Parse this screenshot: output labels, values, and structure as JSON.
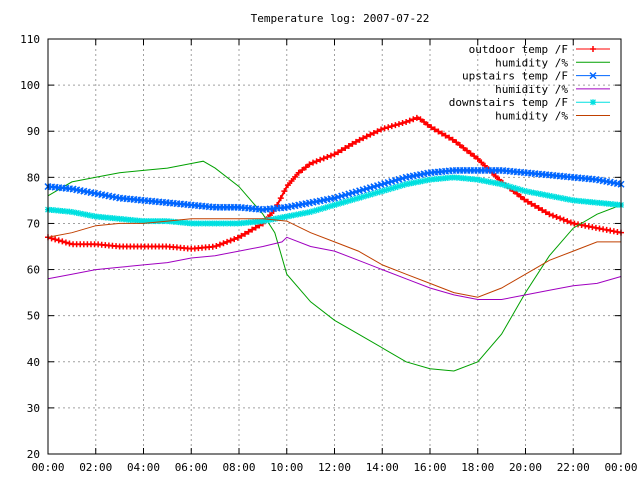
{
  "chart_data": {
    "type": "line",
    "title": "Temperature log: 2007-07-22",
    "xlabel": "",
    "ylabel": "",
    "ylim": [
      20,
      110
    ],
    "yticks": [
      20,
      30,
      40,
      50,
      60,
      70,
      80,
      90,
      100,
      110
    ],
    "xlim": [
      0,
      24
    ],
    "xtick_labels": [
      "00:00",
      "02:00",
      "04:00",
      "06:00",
      "08:00",
      "10:00",
      "12:00",
      "14:00",
      "16:00",
      "18:00",
      "20:00",
      "22:00",
      "00:00"
    ],
    "grid": true,
    "legend_position": "top-right",
    "series": [
      {
        "name": "outdoor temp /F",
        "color": "#ff0000",
        "marker": "plus",
        "x": [
          0,
          1,
          2,
          3,
          4,
          5,
          6,
          7,
          8,
          9,
          9.5,
          10,
          10.5,
          11,
          12,
          13,
          14,
          15,
          15.5,
          16,
          17,
          18,
          19,
          20,
          21,
          22,
          23,
          24
        ],
        "y": [
          67,
          65.5,
          65.5,
          65,
          65,
          65,
          64.5,
          65,
          67,
          70,
          73,
          78,
          81,
          83,
          85,
          88,
          90.5,
          92,
          93,
          91,
          88,
          84,
          79,
          75,
          72,
          70,
          69,
          68
        ]
      },
      {
        "name": "humidity /%",
        "color": "#00a000",
        "marker": "none",
        "x": [
          0,
          1,
          2,
          3,
          4,
          5,
          6,
          6.5,
          7,
          8,
          9,
          9.5,
          10,
          11,
          12,
          13,
          14,
          15,
          16,
          17,
          18,
          19,
          20,
          21,
          22,
          23,
          24
        ],
        "y": [
          76,
          79,
          80,
          81,
          81.5,
          82,
          83,
          83.5,
          82,
          78,
          72,
          68,
          59,
          53,
          49,
          46,
          43,
          40,
          38.5,
          38,
          40,
          46,
          55,
          63,
          69,
          72,
          74
        ]
      },
      {
        "name": "upstairs temp /F",
        "color": "#0066ff",
        "marker": "x",
        "x": [
          0,
          1,
          2,
          3,
          4,
          5,
          6,
          7,
          8,
          9,
          10,
          11,
          12,
          13,
          14,
          15,
          16,
          17,
          18,
          19,
          20,
          21,
          22,
          23,
          24
        ],
        "y": [
          78,
          77.5,
          76.5,
          75.5,
          75,
          74.5,
          74,
          73.5,
          73.5,
          73,
          73.5,
          74.5,
          75.5,
          77,
          78.5,
          80,
          81,
          81.5,
          81.5,
          81.5,
          81,
          80.5,
          80,
          79.5,
          78.5
        ]
      },
      {
        "name": "humidity /%",
        "color": "#a000c0",
        "marker": "none",
        "x": [
          0,
          1,
          2,
          3,
          4,
          5,
          6,
          7,
          8,
          9,
          9.8,
          10,
          11,
          12,
          13,
          14,
          15,
          16,
          17,
          18,
          19,
          20,
          21,
          22,
          23,
          24
        ],
        "y": [
          58,
          59,
          60,
          60.5,
          61,
          61.5,
          62.5,
          63,
          64,
          65,
          66,
          67,
          65,
          64,
          62,
          60,
          58,
          56,
          54.5,
          53.5,
          53.5,
          54.5,
          55.5,
          56.5,
          57,
          58.5
        ]
      },
      {
        "name": "downstairs temp /F",
        "color": "#00e0e0",
        "marker": "star",
        "x": [
          0,
          1,
          2,
          3,
          4,
          5,
          6,
          7,
          8,
          9,
          10,
          11,
          12,
          13,
          14,
          15,
          16,
          17,
          18,
          19,
          20,
          21,
          22,
          23,
          24
        ],
        "y": [
          73,
          72.5,
          71.5,
          71,
          70.5,
          70.5,
          70,
          70,
          70,
          70.5,
          71.5,
          72.5,
          74,
          75.5,
          77,
          78.5,
          79.5,
          80,
          79.5,
          78.5,
          77,
          76,
          75,
          74.5,
          74
        ]
      },
      {
        "name": "humidity /%",
        "color": "#c04000",
        "marker": "none",
        "x": [
          0,
          1,
          2,
          3,
          4,
          5,
          6,
          7,
          8,
          9,
          10,
          11,
          12,
          13,
          14,
          15,
          16,
          17,
          18,
          19,
          20,
          21,
          22,
          23,
          24
        ],
        "y": [
          67,
          68,
          69.5,
          70,
          70,
          70.5,
          71,
          71,
          71,
          71,
          70.5,
          68,
          66,
          64,
          61,
          59,
          57,
          55,
          54,
          56,
          59,
          62,
          64,
          66,
          66
        ]
      }
    ]
  }
}
